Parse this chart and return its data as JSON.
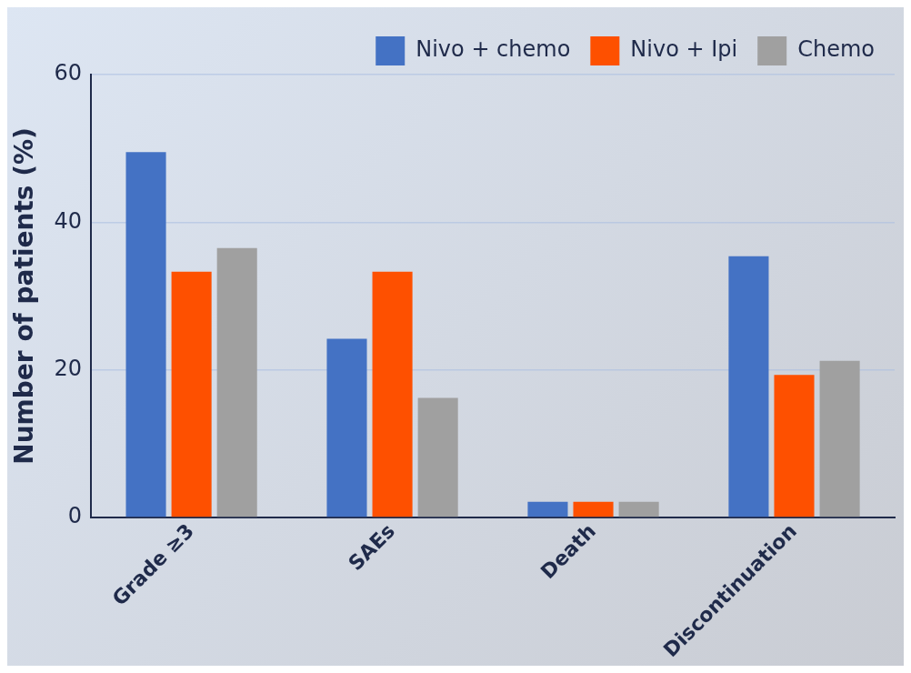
{
  "chart_data": {
    "type": "bar",
    "ylabel": "Number of patients (%)",
    "categories": [
      "Grade ≥3",
      "SAEs",
      "Death",
      "Discontinuation"
    ],
    "series": [
      {
        "name": "Nivo + chemo",
        "color": "#4472c4",
        "values": [
          49.5,
          24.2,
          2.1,
          35.4
        ]
      },
      {
        "name": "Nivo + Ipi",
        "color": "#fe5000",
        "values": [
          33.3,
          33.3,
          2.1,
          19.3
        ]
      },
      {
        "name": "Chemo",
        "color": "#a0a0a0",
        "values": [
          36.5,
          16.2,
          2.1,
          21.2
        ]
      }
    ],
    "ylim": [
      0,
      60
    ],
    "yticks": [
      0,
      20,
      40,
      60
    ],
    "grid": "y",
    "legend": "top right"
  }
}
